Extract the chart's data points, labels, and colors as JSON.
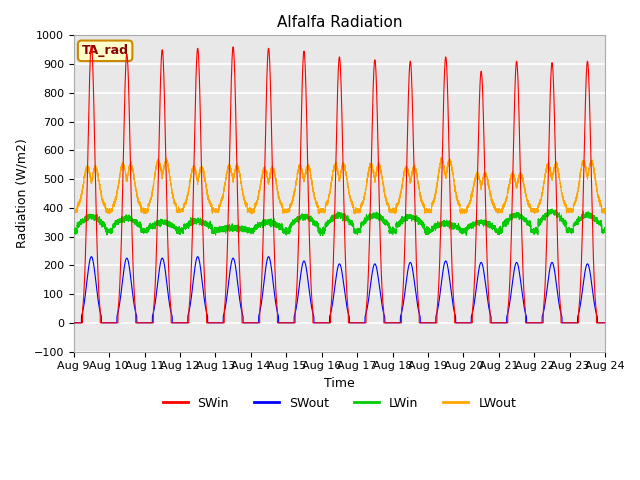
{
  "title": "Alfalfa Radiation",
  "ylabel": "Radiation (W/m2)",
  "xlabel": "Time",
  "ylim": [
    -100,
    1000
  ],
  "x_tick_labels": [
    "Aug 9",
    "Aug 10",
    "Aug 11",
    "Aug 12",
    "Aug 13",
    "Aug 14",
    "Aug 15",
    "Aug 16",
    "Aug 17",
    "Aug 18",
    "Aug 19",
    "Aug 20",
    "Aug 21",
    "Aug 22",
    "Aug 23",
    "Aug 24"
  ],
  "annotation_text": "TA_rad",
  "annotation_bg": "#ffffcc",
  "annotation_border": "#cc8800",
  "bg_color": "#e8e8e8",
  "grid_color": "#ffffff",
  "fig_bg": "#ffffff",
  "colors": {
    "SWin": "#ff0000",
    "SWout": "#0000ff",
    "LWin": "#00cc00",
    "LWout": "#ffa500"
  },
  "n_days": 15,
  "SWin_peak": [
    965,
    935,
    950,
    955,
    960,
    955,
    945,
    925,
    915,
    910,
    925,
    875,
    910,
    905,
    910
  ],
  "SWout_peak": [
    230,
    225,
    225,
    230,
    225,
    230,
    215,
    205,
    205,
    210,
    215,
    210,
    210,
    210,
    205
  ],
  "LWin_base": 320,
  "LWin_peak_day": [
    370,
    365,
    350,
    355,
    330,
    350,
    370,
    375,
    375,
    370,
    345,
    350,
    375,
    385,
    375
  ],
  "LWout_base": 390,
  "LWout_peak": [
    545,
    555,
    570,
    545,
    550,
    540,
    550,
    555,
    555,
    545,
    570,
    520,
    520,
    555,
    565
  ]
}
